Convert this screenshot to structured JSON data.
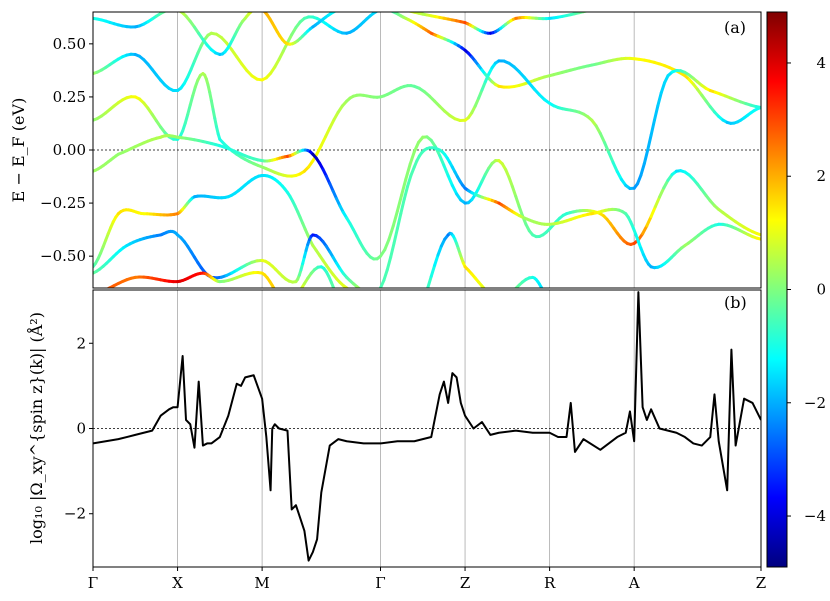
{
  "chart_data": [
    {
      "panel": "(a)",
      "type": "line",
      "ylabel": "E − E_F (eV)",
      "ylim": [
        -0.65,
        0.65
      ],
      "yticks": [
        "0.50",
        "0.25",
        "0.00",
        "−0.25",
        "−0.50"
      ],
      "yticks_values": [
        0.5,
        0.25,
        0.0,
        -0.25,
        -0.5
      ],
      "x_points": [
        "Γ",
        "X",
        "M",
        "Γ",
        "Z",
        "R",
        "A",
        "Z"
      ],
      "x_points_k": [
        0,
        1,
        2,
        3.4,
        4.4,
        5.4,
        6.4,
        7.9
      ],
      "reference_line": 0.0,
      "grid": "vertical lines at high-symmetry points",
      "colorbar": {
        "ticks": [
          "4",
          "2",
          "0",
          "−2",
          "−4"
        ],
        "tick_values": [
          4,
          2,
          0,
          -2,
          -4
        ],
        "range": [
          -4.9,
          4.9
        ],
        "colormap": "jet"
      },
      "bands": [
        {
          "k": [
            0,
            0.5,
            1.0,
            1.4,
            2.0,
            2.5,
            3.0,
            3.4,
            3.7,
            4.0,
            4.4,
            4.8,
            5.4,
            5.9,
            6.4,
            7.0,
            7.5,
            7.9
          ],
          "e": [
            0.36,
            0.45,
            0.28,
            0.55,
            0.33,
            0.62,
            0.55,
            0.66,
            0.62,
            0.55,
            0.47,
            0.3,
            0.35,
            0.4,
            0.43,
            0.35,
            0.13,
            0.2
          ],
          "c": [
            0.2,
            -2.0,
            -1.5,
            0.5,
            1.2,
            -0.5,
            -2.0,
            -1.5,
            0.5,
            2.8,
            -4.0,
            1.5,
            0.3,
            -0.2,
            1.2,
            1.5,
            -1.8,
            -1.0
          ]
        },
        {
          "k": [
            0,
            0.5,
            1.0,
            1.3,
            1.5,
            2.0,
            2.5,
            3.0,
            3.4,
            3.8,
            4.4,
            4.8,
            5.4,
            5.9,
            6.4,
            6.8,
            7.3,
            7.9
          ],
          "e": [
            0.14,
            0.25,
            0.05,
            0.36,
            0.05,
            -0.08,
            -0.1,
            0.23,
            0.25,
            0.3,
            0.14,
            0.42,
            0.22,
            0.14,
            -0.18,
            0.35,
            0.28,
            0.2
          ],
          "c": [
            0.2,
            1.2,
            -1.0,
            0.5,
            -1.0,
            0.2,
            1.5,
            0.3,
            0.0,
            -0.3,
            1.0,
            -2.0,
            -1.2,
            0.5,
            -2.2,
            -1.5,
            1.5,
            -1.2
          ]
        },
        {
          "k": [
            0,
            0.3,
            0.8,
            1.0,
            1.5,
            2.0,
            2.3,
            2.6,
            3.0,
            3.4,
            3.9,
            4.4,
            4.8,
            5.2,
            5.6,
            6.0,
            6.4,
            6.9,
            7.4,
            7.9
          ],
          "e": [
            -0.1,
            -0.02,
            0.06,
            0.06,
            0.02,
            -0.05,
            -0.03,
            -0.02,
            -0.32,
            -0.5,
            0.06,
            -0.25,
            -0.05,
            -0.4,
            -0.3,
            -0.3,
            -0.44,
            -0.1,
            -0.28,
            -0.4
          ],
          "c": [
            0.3,
            0.2,
            0.5,
            0.2,
            -1.0,
            -0.5,
            3.0,
            -4.5,
            -1.0,
            0.0,
            0.2,
            -2.0,
            0.8,
            -0.5,
            -0.8,
            1.5,
            3.0,
            -1.5,
            0.5,
            1.2
          ]
        },
        {
          "k": [
            0,
            0.3,
            0.6,
            1.0,
            1.2,
            1.6,
            2.0,
            2.3,
            2.6,
            3.0,
            3.4,
            3.8,
            4.1,
            4.4,
            4.8,
            5.1,
            5.4,
            5.9,
            6.3,
            6.6,
            7.0,
            7.4,
            7.9
          ],
          "e": [
            -0.55,
            -0.3,
            -0.3,
            -0.3,
            -0.22,
            -0.22,
            -0.12,
            -0.2,
            -0.45,
            -0.65,
            -0.65,
            -0.08,
            0.0,
            -0.18,
            -0.25,
            -0.32,
            -0.35,
            -0.3,
            -0.3,
            -0.55,
            -0.45,
            -0.35,
            -0.42
          ],
          "c": [
            -0.5,
            1.5,
            1.2,
            2.5,
            -2.0,
            -1.5,
            -1.5,
            -1.0,
            0.5,
            1.0,
            -0.5,
            -0.5,
            -0.8,
            -2.5,
            3.0,
            0.3,
            0.5,
            1.5,
            -0.5,
            -2.0,
            0.3,
            -1.0,
            1.5
          ]
        },
        {
          "k": [
            0,
            0.4,
            0.8,
            1.0,
            1.4,
            2.0,
            2.4,
            2.6,
            3.0,
            3.4,
            3.8,
            4.2,
            4.4,
            4.8,
            5.2,
            5.4,
            5.8,
            6.2,
            6.4
          ],
          "e": [
            -0.58,
            -0.45,
            -0.4,
            -0.4,
            -0.6,
            -0.52,
            -0.62,
            -0.4,
            -0.6,
            -0.72,
            -0.8,
            -0.4,
            -0.55,
            -0.7,
            -0.6,
            -0.72,
            -0.85,
            -0.72,
            -0.7
          ],
          "c": [
            -0.3,
            -1.5,
            -2.5,
            -2.0,
            -3.0,
            1.0,
            0.5,
            -3.5,
            -0.5,
            2.0,
            0.5,
            -2.5,
            1.5,
            0.5,
            -1.0,
            -2.0,
            1.0,
            -0.5,
            -1.5
          ]
        },
        {
          "k": [
            0,
            0.5,
            1.0,
            1.3,
            1.5,
            2.0,
            2.3,
            2.7,
            3.0
          ],
          "e": [
            -0.68,
            -0.6,
            -0.62,
            -0.58,
            -0.62,
            -0.58,
            -0.72,
            -0.55,
            -0.78
          ],
          "c": [
            3.0,
            2.5,
            4.0,
            3.5,
            0.0,
            1.5,
            2.0,
            -1.0,
            0.5
          ]
        },
        {
          "k": [
            0,
            0.5,
            1.0,
            1.5,
            1.8,
            2.0,
            2.3,
            2.6,
            2.9,
            3.2,
            3.4,
            3.9,
            4.4,
            4.7,
            5.0,
            5.4,
            5.9,
            6.4
          ],
          "e": [
            0.62,
            0.58,
            0.66,
            0.45,
            0.62,
            0.66,
            0.5,
            0.58,
            0.66,
            0.66,
            0.68,
            0.64,
            0.6,
            0.55,
            0.62,
            0.62,
            0.66,
            0.7
          ],
          "c": [
            -1.0,
            -2.0,
            0.8,
            -1.8,
            0.5,
            2.0,
            1.5,
            -2.0,
            -1.0,
            -1.5,
            2.0,
            0.5,
            3.0,
            -4.0,
            2.5,
            -1.5,
            0.3,
            3.5
          ]
        }
      ]
    },
    {
      "panel": "(b)",
      "type": "line",
      "ylabel": "log₁₀ |Ω_xy^{spin z}(k)| (Å²)",
      "ylim": [
        -3.25,
        3.25
      ],
      "yticks": [
        "2",
        "0",
        "−2"
      ],
      "yticks_values": [
        2,
        0,
        -2
      ],
      "x_points": [
        "Γ",
        "X",
        "M",
        "Γ",
        "Z",
        "R",
        "A",
        "Z"
      ],
      "x_points_k": [
        0,
        1,
        2,
        3.4,
        4.4,
        5.4,
        6.4,
        7.9
      ],
      "reference_line": 0.0,
      "series": [
        {
          "color": "#000000",
          "x": [
            0,
            0.3,
            0.5,
            0.7,
            0.8,
            0.9,
            0.95,
            1.0,
            1.06,
            1.1,
            1.15,
            1.2,
            1.25,
            1.3,
            1.35,
            1.4,
            1.5,
            1.6,
            1.7,
            1.75,
            1.8,
            1.9,
            2.0,
            2.05,
            2.1,
            2.12,
            2.15,
            2.2,
            2.3,
            2.35,
            2.4,
            2.45,
            2.5,
            2.55,
            2.6,
            2.65,
            2.7,
            2.8,
            2.9,
            3.0,
            3.2,
            3.4,
            3.6,
            3.8,
            4.0,
            4.1,
            4.15,
            4.2,
            4.25,
            4.3,
            4.35,
            4.4,
            4.5,
            4.6,
            4.7,
            4.8,
            5.0,
            5.2,
            5.4,
            5.5,
            5.6,
            5.65,
            5.7,
            5.8,
            6.0,
            6.2,
            6.3,
            6.35,
            6.4,
            6.45,
            6.5,
            6.55,
            6.6,
            6.7,
            6.9,
            7.0,
            7.1,
            7.2,
            7.3,
            7.35,
            7.4,
            7.5,
            7.55,
            7.6,
            7.7,
            7.8,
            7.9
          ],
          "y": [
            -0.35,
            -0.25,
            -0.15,
            -0.05,
            0.3,
            0.45,
            0.5,
            0.5,
            1.7,
            0.2,
            0.1,
            -0.45,
            1.1,
            -0.4,
            -0.35,
            -0.35,
            -0.2,
            0.3,
            1.05,
            1.0,
            1.2,
            1.25,
            0.7,
            -0.2,
            -1.45,
            0.0,
            0.1,
            0.0,
            -0.05,
            -1.9,
            -1.8,
            -2.1,
            -2.4,
            -3.1,
            -2.9,
            -2.6,
            -1.5,
            -0.4,
            -0.25,
            -0.3,
            -0.35,
            -0.35,
            -0.3,
            -0.3,
            -0.2,
            0.8,
            1.1,
            0.6,
            1.3,
            1.2,
            0.6,
            0.3,
            0.0,
            0.15,
            -0.15,
            -0.1,
            -0.05,
            -0.1,
            -0.1,
            -0.2,
            -0.2,
            0.6,
            -0.55,
            -0.25,
            -0.5,
            -0.2,
            -0.1,
            0.4,
            -0.3,
            3.2,
            0.5,
            0.2,
            0.45,
            0.0,
            -0.1,
            -0.2,
            -0.35,
            -0.4,
            -0.2,
            0.8,
            -0.3,
            -1.45,
            1.85,
            -0.4,
            0.7,
            0.6,
            0.2
          ]
        }
      ]
    }
  ]
}
